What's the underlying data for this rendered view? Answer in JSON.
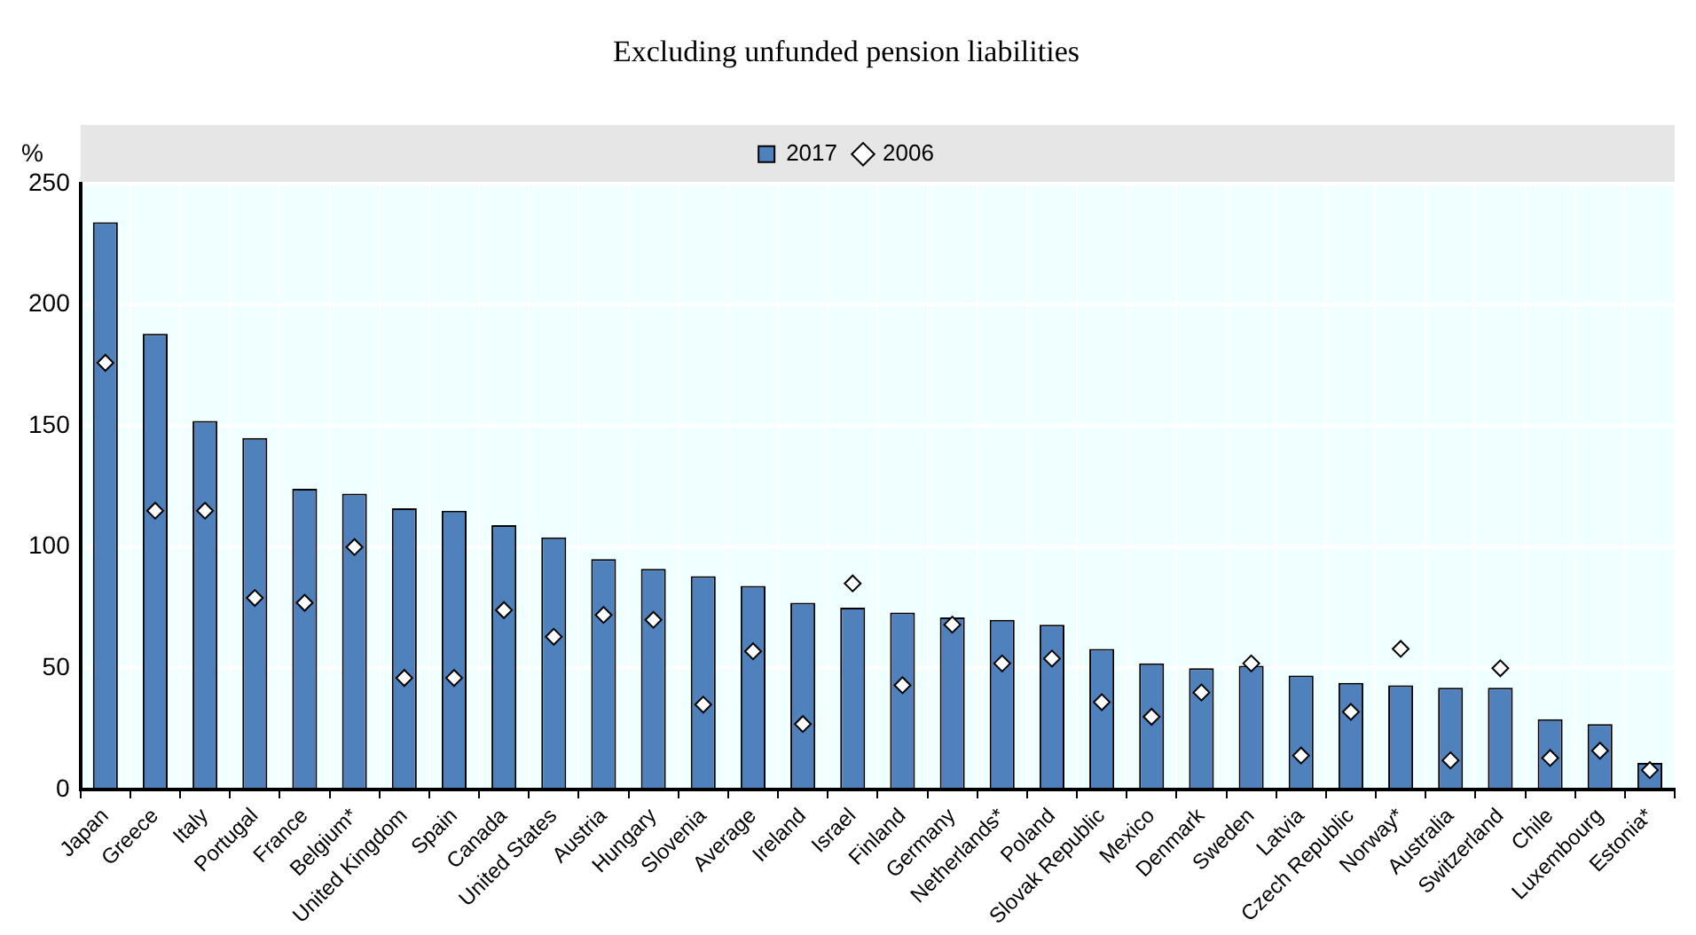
{
  "chart_data": {
    "type": "bar",
    "title": "Excluding unfunded pension liabilities",
    "ylabel": "%",
    "categories": [
      "Japan",
      "Greece",
      "Italy",
      "Portugal",
      "France",
      "Belgium*",
      "United Kingdom",
      "Spain",
      "Canada",
      "United States",
      "Austria",
      "Hungary",
      "Slovenia",
      "Average",
      "Ireland",
      "Israel",
      "Finland",
      "Germany",
      "Netherlands*",
      "Poland",
      "Slovak Republic",
      "Mexico",
      "Denmark",
      "Sweden",
      "Latvia",
      "Czech Republic",
      "Norway*",
      "Australia",
      "Switzerland",
      "Chile",
      "Luxembourg",
      "Estonia*"
    ],
    "series": [
      {
        "name": "2017",
        "color": "#4f81bd",
        "values": [
          234,
          188,
          152,
          145,
          124,
          122,
          116,
          115,
          109,
          104,
          95,
          91,
          88,
          84,
          77,
          75,
          73,
          71,
          70,
          68,
          58,
          52,
          50,
          51,
          47,
          44,
          43,
          42,
          42,
          29,
          27,
          11
        ]
      },
      {
        "name": "2006",
        "type": "scatter",
        "color": "#ffffff",
        "marker": "diamond",
        "values": [
          176,
          115,
          115,
          79,
          77,
          100,
          46,
          46,
          74,
          63,
          72,
          70,
          35,
          57,
          27,
          85,
          43,
          68,
          52,
          54,
          36,
          30,
          40,
          52,
          14,
          32,
          58,
          12,
          50,
          13,
          16,
          8
        ]
      }
    ],
    "ylim": [
      0,
      250
    ],
    "yticks": [
      0,
      50,
      100,
      150,
      200,
      250
    ],
    "grid": true,
    "legend": "top"
  }
}
